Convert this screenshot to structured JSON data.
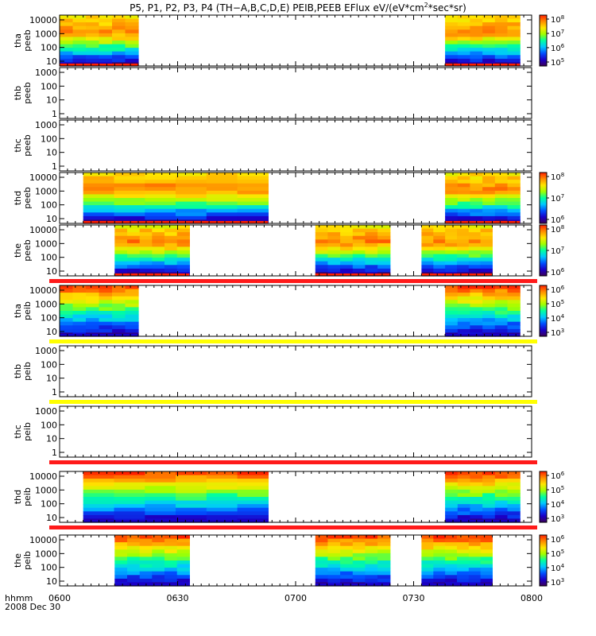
{
  "title": "P5, P1, P2, P3, P4 (TH−A,B,C,D,E) PEIB,PEEB EFlux eV/(eV*cm",
  "title_sup": "2",
  "title_tail": "*sec*sr)",
  "footer": {
    "label": "hhmm",
    "date": "2008 Dec 30"
  },
  "colors": {
    "bar_red": "#ff1a1a",
    "bar_yellow": "#ffff00",
    "bar_black": "#000000"
  },
  "chart_data": {
    "type": "heatmap",
    "x_ticks": [
      "0600",
      "0630",
      "0700",
      "0730",
      "0800"
    ],
    "x_range_minutes": [
      0,
      120
    ],
    "colorscale": [
      "#3c005a",
      "#1a00c8",
      "#0050ff",
      "#00c8ff",
      "#00ffa0",
      "#a0ff00",
      "#ffe600",
      "#ff8c00",
      "#ff1e00"
    ],
    "panels": [
      {
        "probe": "tha",
        "species": "peeb",
        "ylog": true,
        "yticks": [
          "10",
          "100",
          "1000",
          "10000"
        ],
        "cbar_ticks": [
          "10",
          "10",
          "10",
          "10"
        ],
        "cbar_exps": [
          "8",
          "7",
          "6",
          "5"
        ],
        "intervals": [
          [
            0,
            20
          ],
          [
            98,
            117
          ]
        ],
        "status_bar": null
      },
      {
        "probe": "thb",
        "species": "peeb",
        "ylog": true,
        "yticks": [
          "1",
          "10",
          "100",
          "1000"
        ],
        "cbar_ticks": [],
        "cbar_exps": [],
        "intervals": [],
        "status_bar": null
      },
      {
        "probe": "thc",
        "species": "peeb",
        "ylog": true,
        "yticks": [
          "1",
          "10",
          "100",
          "1000"
        ],
        "cbar_ticks": [],
        "cbar_exps": [],
        "intervals": [],
        "status_bar": null
      },
      {
        "probe": "thd",
        "species": "peeb",
        "ylog": true,
        "yticks": [
          "10",
          "100",
          "1000",
          "10000"
        ],
        "cbar_ticks": [
          "10",
          "10",
          "10"
        ],
        "cbar_exps": [
          "8",
          "7",
          "6"
        ],
        "intervals": [
          [
            6,
            53
          ],
          [
            98,
            117
          ]
        ],
        "status_bar": null
      },
      {
        "probe": "the",
        "species": "peeb",
        "ylog": true,
        "yticks": [
          "10",
          "100",
          "1000",
          "10000"
        ],
        "cbar_ticks": [
          "10",
          "10",
          "10"
        ],
        "cbar_exps": [
          "8",
          "7",
          "6"
        ],
        "intervals": [
          [
            14,
            33
          ],
          [
            65,
            84
          ],
          [
            92,
            110
          ]
        ],
        "status_bar": "red"
      },
      {
        "probe": "tha",
        "species": "peib",
        "ylog": true,
        "yticks": [
          "10",
          "100",
          "1000",
          "10000"
        ],
        "cbar_ticks": [
          "10",
          "10",
          "10",
          "10"
        ],
        "cbar_exps": [
          "6",
          "5",
          "4",
          "3"
        ],
        "intervals": [
          [
            0,
            20
          ],
          [
            98,
            117
          ]
        ],
        "status_bar": "yellow"
      },
      {
        "probe": "thb",
        "species": "peib",
        "ylog": true,
        "yticks": [
          "1",
          "10",
          "100",
          "1000"
        ],
        "cbar_ticks": [],
        "cbar_exps": [],
        "intervals": [],
        "status_bar": "yellow"
      },
      {
        "probe": "thc",
        "species": "peib",
        "ylog": true,
        "yticks": [
          "1",
          "10",
          "100",
          "1000"
        ],
        "cbar_ticks": [],
        "cbar_exps": [],
        "intervals": [],
        "status_bar": "red"
      },
      {
        "probe": "thd",
        "species": "peib",
        "ylog": true,
        "yticks": [
          "10",
          "100",
          "1000",
          "10000"
        ],
        "cbar_ticks": [
          "10",
          "10",
          "10",
          "10"
        ],
        "cbar_exps": [
          "6",
          "5",
          "4",
          "3"
        ],
        "intervals": [
          [
            6,
            53
          ],
          [
            98,
            117
          ]
        ],
        "status_bar": "red"
      },
      {
        "probe": "the",
        "species": "peib",
        "ylog": true,
        "yticks": [
          "10",
          "100",
          "1000",
          "10000"
        ],
        "cbar_ticks": [
          "10",
          "10",
          "10",
          "10"
        ],
        "cbar_exps": [
          "6",
          "5",
          "4",
          "3"
        ],
        "intervals": [
          [
            14,
            33
          ],
          [
            65,
            84
          ],
          [
            92,
            110
          ]
        ],
        "status_bar": null
      }
    ]
  }
}
